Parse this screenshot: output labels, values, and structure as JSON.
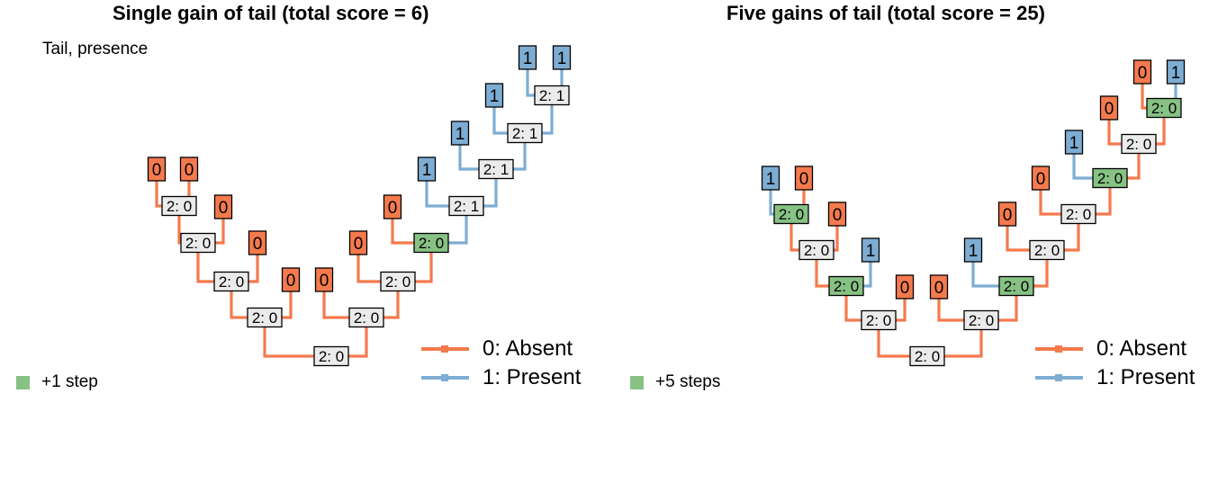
{
  "colors": {
    "absent": "#F47A4D",
    "present": "#7EADD3",
    "gain": "#87C183",
    "node": "#EBEBEB"
  },
  "panels": [
    {
      "title": "Single gain of tail (total score = 6)",
      "character_label": "Tail, presence",
      "step_legend": "+1 step",
      "state_legend": [
        "0: Absent",
        "1: Present"
      ],
      "tips": [
        {
          "label": "0",
          "state": "absent"
        },
        {
          "label": "0",
          "state": "absent"
        },
        {
          "label": "0",
          "state": "absent"
        },
        {
          "label": "0",
          "state": "absent"
        },
        {
          "label": "0",
          "state": "absent"
        },
        {
          "label": "0",
          "state": "absent"
        },
        {
          "label": "0",
          "state": "absent"
        },
        {
          "label": "0",
          "state": "absent"
        },
        {
          "label": "1",
          "state": "present"
        },
        {
          "label": "1",
          "state": "present"
        },
        {
          "label": "1",
          "state": "present"
        },
        {
          "label": "1",
          "state": "present"
        },
        {
          "label": "1",
          "state": "present"
        }
      ],
      "nodes": [
        {
          "label": "2: 0",
          "state": "absent",
          "gain": false
        },
        {
          "label": "2: 0",
          "state": "absent",
          "gain": false
        },
        {
          "label": "2: 0",
          "state": "absent",
          "gain": false
        },
        {
          "label": "2: 0",
          "state": "absent",
          "gain": false
        },
        {
          "label": "2: 0",
          "state": "absent",
          "gain": false
        },
        {
          "label": "2: 0",
          "state": "absent",
          "gain": false
        },
        {
          "label": "2: 0",
          "state": "absent",
          "gain": false
        },
        {
          "label": "2: 0",
          "state": "absent",
          "gain": true
        },
        {
          "label": "2: 1",
          "state": "present",
          "gain": false
        },
        {
          "label": "2: 1",
          "state": "present",
          "gain": false
        },
        {
          "label": "2: 1",
          "state": "present",
          "gain": false
        },
        {
          "label": "2: 1",
          "state": "present",
          "gain": false
        }
      ]
    },
    {
      "title": "Five gains of tail (total score = 25)",
      "step_legend": "+5 steps",
      "state_legend": [
        "0: Absent",
        "1: Present"
      ],
      "tips": [
        {
          "label": "1",
          "state": "present"
        },
        {
          "label": "0",
          "state": "absent"
        },
        {
          "label": "0",
          "state": "absent"
        },
        {
          "label": "1",
          "state": "present"
        },
        {
          "label": "0",
          "state": "absent"
        },
        {
          "label": "0",
          "state": "absent"
        },
        {
          "label": "1",
          "state": "present"
        },
        {
          "label": "0",
          "state": "absent"
        },
        {
          "label": "0",
          "state": "absent"
        },
        {
          "label": "1",
          "state": "present"
        },
        {
          "label": "0",
          "state": "absent"
        },
        {
          "label": "0",
          "state": "absent"
        },
        {
          "label": "1",
          "state": "present"
        }
      ],
      "nodes": [
        {
          "label": "2: 0",
          "state": "absent",
          "gain": false
        },
        {
          "label": "2: 0",
          "state": "absent",
          "gain": false
        },
        {
          "label": "2: 0",
          "state": "absent",
          "gain": true
        },
        {
          "label": "2: 0",
          "state": "absent",
          "gain": false
        },
        {
          "label": "2: 0",
          "state": "absent",
          "gain": true
        },
        {
          "label": "2: 0",
          "state": "absent",
          "gain": false
        },
        {
          "label": "2: 0",
          "state": "absent",
          "gain": true
        },
        {
          "label": "2: 0",
          "state": "absent",
          "gain": false
        },
        {
          "label": "2: 0",
          "state": "absent",
          "gain": false
        },
        {
          "label": "2: 0",
          "state": "absent",
          "gain": true
        },
        {
          "label": "2: 0",
          "state": "absent",
          "gain": false
        },
        {
          "label": "2: 0",
          "state": "absent",
          "gain": true
        }
      ]
    }
  ]
}
